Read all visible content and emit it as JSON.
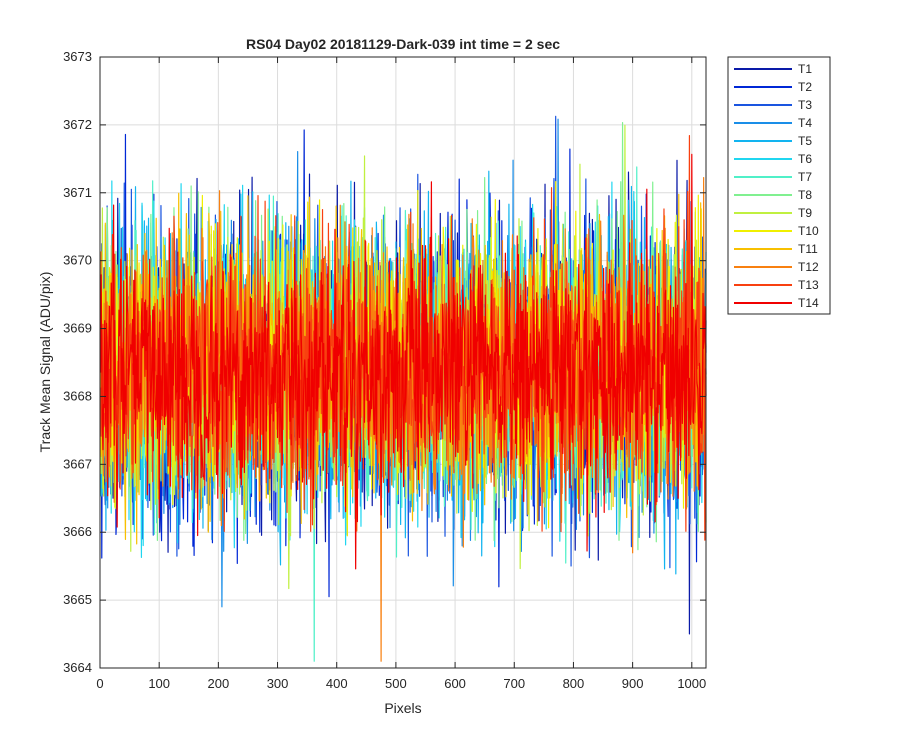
{
  "chart_data": {
    "type": "line",
    "title": "RS04 Day02 20181129-Dark-039 int time = 2 sec",
    "xlabel": "Pixels",
    "ylabel": "Track Mean Signal (ADU/pix)",
    "xlim": [
      0,
      1024
    ],
    "ylim": [
      3664,
      3673
    ],
    "xticks": [
      0,
      100,
      200,
      300,
      400,
      500,
      600,
      700,
      800,
      900,
      1000
    ],
    "yticks": [
      3664,
      3665,
      3666,
      3667,
      3668,
      3669,
      3670,
      3671,
      3672,
      3673
    ],
    "grid": true,
    "legend_position": "outside-top-right",
    "n_points_per_series": 1024,
    "series": [
      {
        "name": "T1",
        "color": "#0a1aa8",
        "mean": 3668.35,
        "std": 1.05
      },
      {
        "name": "T2",
        "color": "#0028d6",
        "mean": 3668.35,
        "std": 1.05
      },
      {
        "name": "T3",
        "color": "#1a55e0",
        "mean": 3668.3,
        "std": 1.0
      },
      {
        "name": "T4",
        "color": "#1a8ee8",
        "mean": 3668.3,
        "std": 1.0
      },
      {
        "name": "T5",
        "color": "#12b4f0",
        "mean": 3668.3,
        "std": 1.0
      },
      {
        "name": "T6",
        "color": "#20d6f0",
        "mean": 3668.35,
        "std": 1.0
      },
      {
        "name": "T7",
        "color": "#50f0c8",
        "mean": 3668.4,
        "std": 0.95
      },
      {
        "name": "T8",
        "color": "#80f090",
        "mean": 3668.4,
        "std": 0.95
      },
      {
        "name": "T9",
        "color": "#c0f040",
        "mean": 3668.4,
        "std": 0.95
      },
      {
        "name": "T10",
        "color": "#f0f000",
        "mean": 3668.45,
        "std": 0.9
      },
      {
        "name": "T11",
        "color": "#f8c000",
        "mean": 3668.45,
        "std": 0.9
      },
      {
        "name": "T12",
        "color": "#f88010",
        "mean": 3668.4,
        "std": 0.9
      },
      {
        "name": "T13",
        "color": "#f84010",
        "mean": 3668.4,
        "std": 0.9
      },
      {
        "name": "T14",
        "color": "#f00000",
        "mean": 3668.35,
        "std": 0.85
      }
    ]
  }
}
